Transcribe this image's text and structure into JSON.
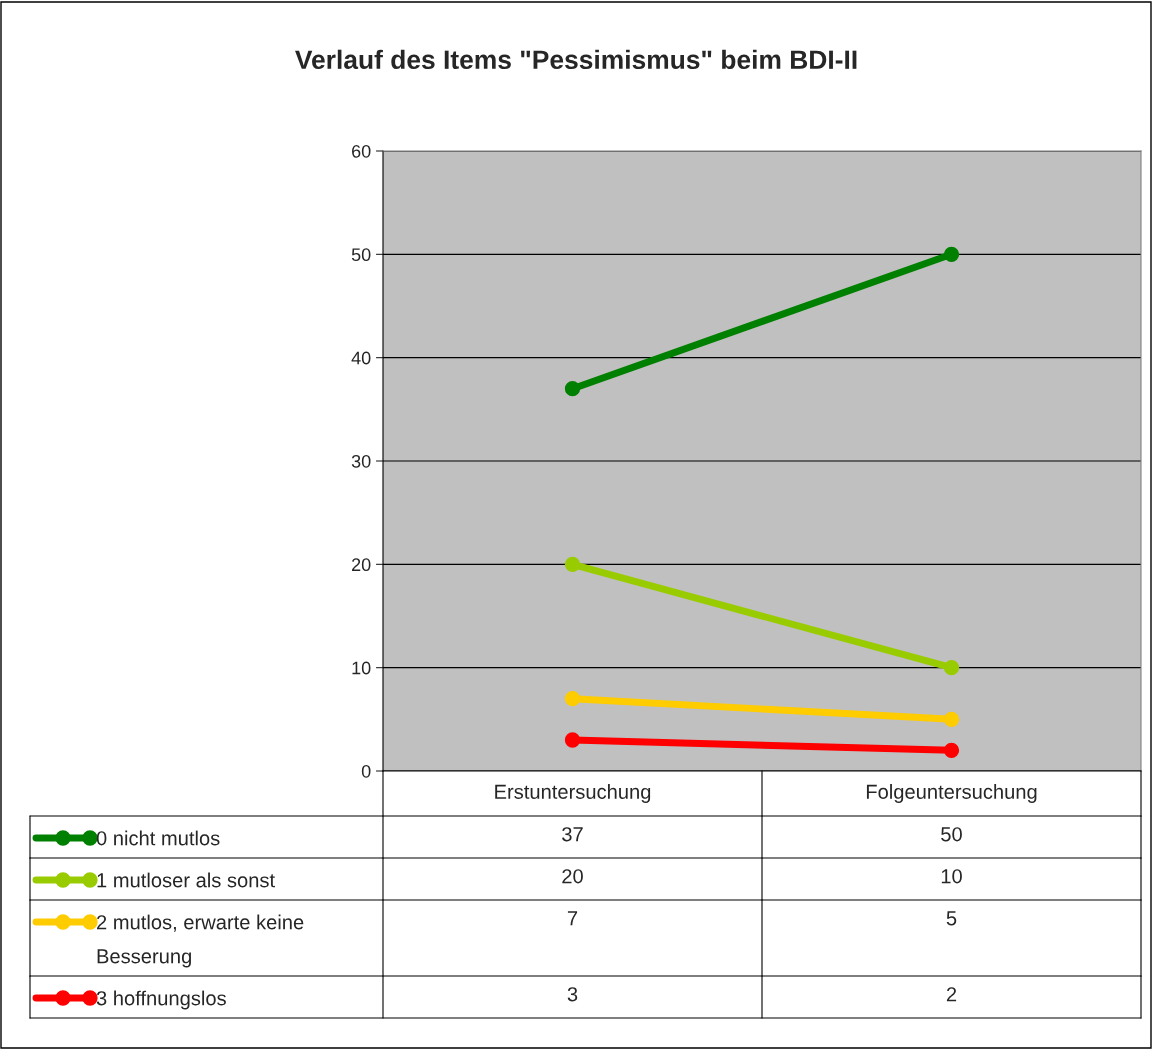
{
  "chart_data": {
    "type": "line",
    "title": "Verlauf des Items \"Pessimismus\" beim BDI-II",
    "categories": [
      "Erstuntersuchung",
      "Folgeuntersuchung"
    ],
    "series": [
      {
        "name": "0 nicht mutlos",
        "color": "#008000",
        "values": [
          37,
          50
        ]
      },
      {
        "name": "1 mutloser als sonst",
        "color": "#99cc00",
        "values": [
          20,
          10
        ]
      },
      {
        "name": "2 mutlos, erwarte keine Besserung",
        "color": "#ffcc00",
        "values": [
          7,
          5
        ]
      },
      {
        "name": "3 hoffnungslos",
        "color": "#ff0000",
        "values": [
          3,
          2
        ]
      }
    ],
    "ylim": [
      0,
      60
    ],
    "yticks": [
      0,
      10,
      20,
      30,
      40,
      50,
      60
    ],
    "grid": "y",
    "legend": "bottom",
    "data_labels": true,
    "marker": "circle",
    "line_style": "solid"
  }
}
